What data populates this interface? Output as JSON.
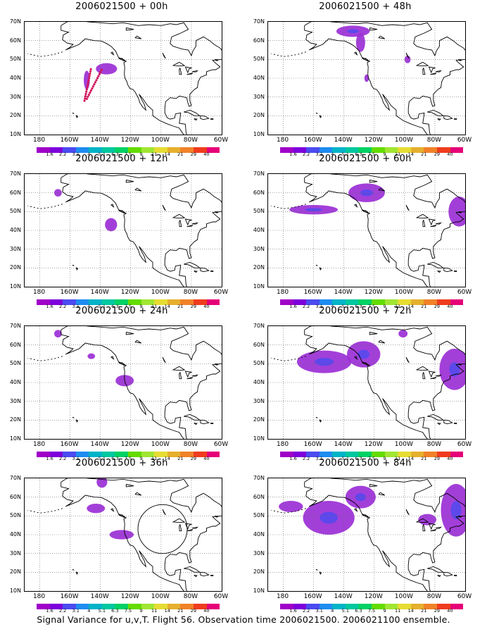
{
  "panels": [
    {
      "title": "2006021500 + 00h",
      "blobs": [
        {
          "lon": -136,
          "lat": 45,
          "rx": 7,
          "ry": 3
        },
        {
          "lon": -149,
          "lat": 39,
          "rx": 2,
          "ry": 5
        }
      ],
      "track": true
    },
    {
      "title": "2006021500 + 48h",
      "blobs": [
        {
          "lon": -134,
          "lat": 65,
          "rx": 11,
          "ry": 3
        },
        {
          "lon": -129,
          "lat": 59,
          "rx": 3,
          "ry": 5
        },
        {
          "lon": -98,
          "lat": 50,
          "rx": 2,
          "ry": 2
        },
        {
          "lon": -125,
          "lat": 40,
          "rx": 1.5,
          "ry": 2
        }
      ],
      "track": false
    },
    {
      "title": "2006021500 + 12h",
      "blobs": [
        {
          "lon": -168,
          "lat": 60,
          "rx": 2.5,
          "ry": 2
        },
        {
          "lon": -133,
          "lat": 43,
          "rx": 4,
          "ry": 3.5
        }
      ],
      "track": false
    },
    {
      "title": "2006021500 + 60h",
      "blobs": [
        {
          "lon": -125,
          "lat": 60,
          "rx": 12,
          "ry": 5
        },
        {
          "lon": -160,
          "lat": 51,
          "rx": 16,
          "ry": 2.5
        },
        {
          "lon": -64,
          "lat": 50,
          "rx": 7,
          "ry": 8
        }
      ],
      "track": false
    },
    {
      "title": "2006021500 + 24h",
      "blobs": [
        {
          "lon": -168,
          "lat": 66,
          "rx": 2.5,
          "ry": 2
        },
        {
          "lon": -146,
          "lat": 54,
          "rx": 2.5,
          "ry": 1.5
        },
        {
          "lon": -124,
          "lat": 41,
          "rx": 6,
          "ry": 3
        }
      ],
      "track": false
    },
    {
      "title": "2006021500 + 72h",
      "blobs": [
        {
          "lon": -153,
          "lat": 51,
          "rx": 18,
          "ry": 6
        },
        {
          "lon": -127,
          "lat": 55,
          "rx": 11,
          "ry": 7
        },
        {
          "lon": -101,
          "lat": 66,
          "rx": 3,
          "ry": 2
        },
        {
          "lon": -67,
          "lat": 47,
          "rx": 10,
          "ry": 11
        }
      ],
      "track": false
    },
    {
      "title": "2006021500 + 36h",
      "blobs": [
        {
          "lon": -139,
          "lat": 68,
          "rx": 3.5,
          "ry": 3
        },
        {
          "lon": -143,
          "lat": 54,
          "rx": 6,
          "ry": 2.5
        },
        {
          "lon": -126,
          "lat": 40,
          "rx": 8,
          "ry": 2.5
        }
      ],
      "track": false,
      "circle": {
        "lon": -99,
        "lat": 43,
        "r": 13
      }
    },
    {
      "title": "2006021500 + 84h",
      "blobs": [
        {
          "lon": -150,
          "lat": 49,
          "rx": 17,
          "ry": 9
        },
        {
          "lon": -129,
          "lat": 60,
          "rx": 10,
          "ry": 6
        },
        {
          "lon": -175,
          "lat": 55,
          "rx": 8,
          "ry": 3
        },
        {
          "lon": -66,
          "lat": 53,
          "rx": 10,
          "ry": 14
        },
        {
          "lon": -85,
          "lat": 48,
          "rx": 6,
          "ry": 3
        }
      ],
      "track": false
    }
  ],
  "axes": {
    "lat_labels": [
      "70N",
      "60N",
      "50N",
      "40N",
      "30N",
      "20N",
      "10N"
    ],
    "lon_labels": [
      "180",
      "160W",
      "140W",
      "120W",
      "100W",
      "80W",
      "60W"
    ]
  },
  "colorbar": {
    "labels": [
      "1.6",
      "2.2",
      "3.1",
      "4",
      "5.1",
      "6.3",
      "7.5",
      "9",
      "11",
      "14",
      "21",
      "29",
      "40"
    ],
    "colors": [
      "#a000c8",
      "#7d00dc",
      "#4b4bf0",
      "#1e8cf0",
      "#00b4c8",
      "#00c8a0",
      "#00d264",
      "#64dc00",
      "#a0e632",
      "#e6dc32",
      "#e6af2d",
      "#f08228",
      "#f03c1e",
      "#e60078"
    ]
  },
  "footer": "Signal Variance for u,v,T. Flight 56. Observation time 2006021500. 2006021100 ensemble."
}
